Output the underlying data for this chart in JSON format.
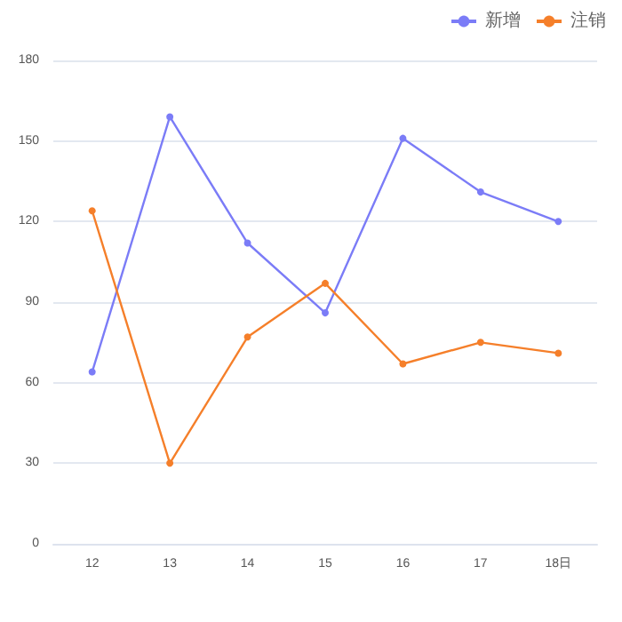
{
  "chart_data": {
    "type": "line",
    "categories": [
      "12",
      "13",
      "14",
      "15",
      "16",
      "17",
      "18日"
    ],
    "series": [
      {
        "name": "新增",
        "color": "#7b7cf7",
        "values": [
          64,
          159,
          112,
          86,
          151,
          131,
          120
        ]
      },
      {
        "name": "注销",
        "color": "#f57f2a",
        "values": [
          124,
          30,
          77,
          97,
          67,
          75,
          71
        ]
      }
    ],
    "ylim": [
      0,
      180
    ],
    "yticks": [
      0,
      30,
      60,
      90,
      120,
      150,
      180
    ],
    "grid": "y",
    "legend": "top right",
    "marker": "circle"
  }
}
